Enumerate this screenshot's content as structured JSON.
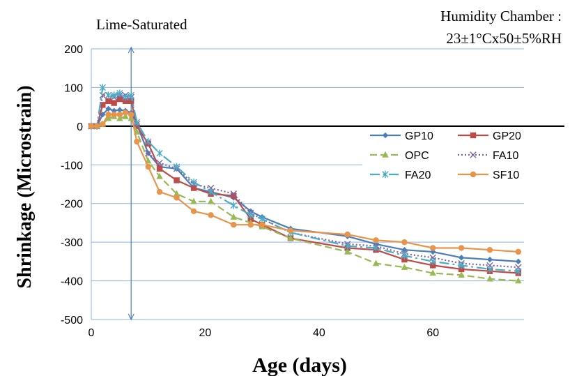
{
  "chart_data": {
    "type": "line",
    "annotations": {
      "condition": "Lime-Saturated",
      "chamber_line1": "Humidity Chamber :",
      "chamber_line2": "23±1°Cx50±5%RH"
    },
    "xlabel": "Age (days)",
    "ylabel": "Shrinkage (Microstrain)",
    "xlim": [
      0,
      76
    ],
    "ylim": [
      -500,
      200
    ],
    "xticks": [
      "0",
      "20",
      "40",
      "60"
    ],
    "yticks": [
      "200",
      "100",
      "0",
      "-100",
      "-200",
      "-300",
      "-400",
      "-500"
    ],
    "grid": "horizontal",
    "reference_line_x": 7,
    "legend_position": "right-middle",
    "series": [
      {
        "name": "GP10",
        "color": "#4a7ebb",
        "dash": "",
        "marker": "diamond",
        "x": [
          0,
          1,
          2,
          3,
          4,
          5,
          6,
          7,
          8,
          10,
          12,
          15,
          18,
          21,
          25,
          28,
          30,
          35,
          45,
          50,
          55,
          60,
          65,
          70,
          75
        ],
        "y": [
          0,
          0,
          30,
          45,
          40,
          42,
          40,
          35,
          5,
          -70,
          -105,
          -110,
          -160,
          -170,
          -185,
          -220,
          -235,
          -265,
          -285,
          -305,
          -320,
          -325,
          -340,
          -345,
          -350
        ]
      },
      {
        "name": "GP20",
        "color": "#be4b48",
        "dash": "",
        "marker": "square",
        "x": [
          0,
          1,
          2,
          3,
          4,
          5,
          6,
          7,
          8,
          10,
          12,
          15,
          18,
          21,
          25,
          28,
          30,
          35,
          45,
          50,
          55,
          60,
          65,
          70,
          75
        ],
        "y": [
          0,
          0,
          55,
          65,
          60,
          70,
          65,
          65,
          0,
          -45,
          -110,
          -140,
          -160,
          -175,
          -180,
          -240,
          -255,
          -290,
          -315,
          -320,
          -345,
          -360,
          -370,
          -375,
          -380
        ]
      },
      {
        "name": "OPC",
        "color": "#98b954",
        "dash": "10,5",
        "marker": "triangle",
        "x": [
          0,
          1,
          2,
          3,
          4,
          5,
          6,
          7,
          8,
          10,
          12,
          15,
          18,
          21,
          25,
          28,
          30,
          35,
          45,
          50,
          55,
          60,
          65,
          70,
          75
        ],
        "y": [
          0,
          0,
          5,
          20,
          25,
          20,
          25,
          20,
          -15,
          -90,
          -130,
          -175,
          -195,
          -195,
          -235,
          -250,
          -260,
          -290,
          -325,
          -355,
          -365,
          -380,
          -385,
          -395,
          -400
        ]
      },
      {
        "name": "FA10",
        "color": "#7e649e",
        "dash": "2,3",
        "marker": "x",
        "x": [
          0,
          1,
          2,
          3,
          4,
          5,
          6,
          7,
          8,
          10,
          12,
          15,
          18,
          21,
          25,
          28,
          30,
          35,
          45,
          50,
          55,
          60,
          65,
          70,
          75
        ],
        "y": [
          0,
          0,
          80,
          80,
          75,
          80,
          80,
          75,
          5,
          -70,
          -95,
          -110,
          -150,
          -160,
          -175,
          -225,
          -240,
          -275,
          -305,
          -310,
          -330,
          -340,
          -355,
          -360,
          -365
        ]
      },
      {
        "name": "FA20",
        "color": "#4bacc6",
        "dash": "14,5,3,5",
        "marker": "asterisk",
        "x": [
          0,
          1,
          2,
          3,
          4,
          5,
          6,
          7,
          8,
          10,
          12,
          15,
          18,
          21,
          25,
          28,
          30,
          35,
          45,
          50,
          55,
          60,
          65,
          70,
          75
        ],
        "y": [
          0,
          0,
          100,
          80,
          80,
          85,
          75,
          80,
          10,
          -40,
          -70,
          -105,
          -145,
          -170,
          -205,
          -230,
          -240,
          -275,
          -310,
          -315,
          -335,
          -350,
          -360,
          -370,
          -375
        ]
      },
      {
        "name": "SF10",
        "color": "#e8944a",
        "dash": "",
        "marker": "circle",
        "x": [
          0,
          1,
          2,
          3,
          4,
          5,
          6,
          7,
          8,
          10,
          12,
          15,
          18,
          21,
          25,
          28,
          30,
          35,
          45,
          50,
          55,
          60,
          65,
          70,
          75
        ],
        "y": [
          0,
          0,
          5,
          30,
          30,
          30,
          35,
          30,
          -40,
          -105,
          -170,
          -185,
          -220,
          -230,
          -255,
          -255,
          -255,
          -270,
          -280,
          -295,
          -300,
          -315,
          -315,
          -320,
          -325
        ]
      }
    ]
  }
}
